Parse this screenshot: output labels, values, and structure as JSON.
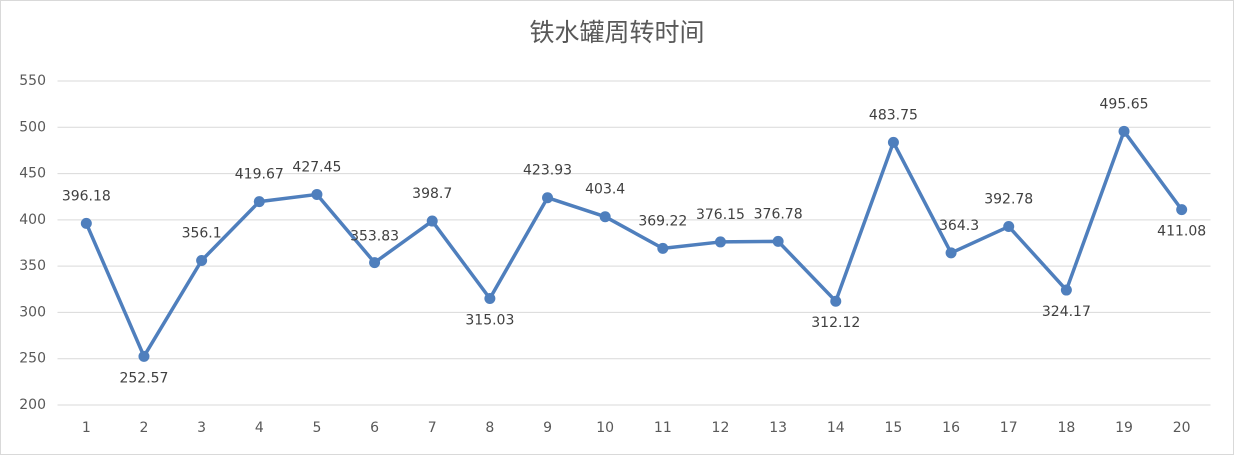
{
  "chart_data": {
    "type": "line",
    "title": "铁水罐周转时间",
    "categories": [
      "1",
      "2",
      "3",
      "4",
      "5",
      "6",
      "7",
      "8",
      "9",
      "10",
      "11",
      "12",
      "13",
      "14",
      "15",
      "16",
      "17",
      "18",
      "19",
      "20"
    ],
    "series": [
      {
        "name": "铁水罐周转时间",
        "color": "#4f7fbd",
        "values": [
          396.18,
          252.57,
          356.1,
          419.67,
          427.45,
          353.83,
          398.7,
          315.03,
          423.93,
          403.4,
          369.22,
          376.15,
          376.78,
          312.12,
          483.75,
          364.3,
          392.78,
          324.17,
          495.65,
          411.08
        ]
      }
    ],
    "ylim": [
      200,
      550
    ],
    "yticks": [
      200,
      250,
      300,
      350,
      400,
      450,
      500,
      550
    ],
    "grid": true
  }
}
